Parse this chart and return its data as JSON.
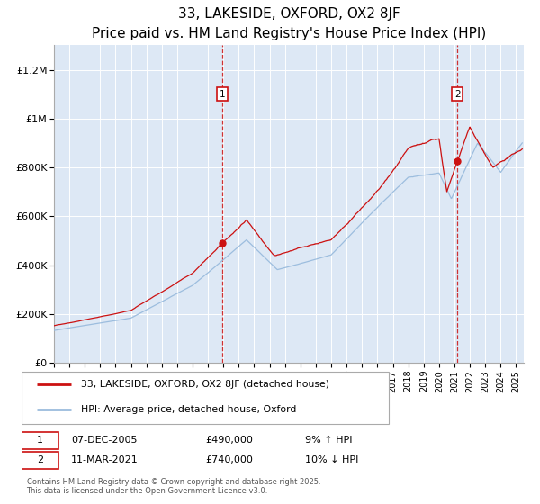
{
  "title": "33, LAKESIDE, OXFORD, OX2 8JF",
  "subtitle": "Price paid vs. HM Land Registry's House Price Index (HPI)",
  "title_fontsize": 11,
  "subtitle_fontsize": 9,
  "ylim": [
    0,
    1300000
  ],
  "yticks": [
    0,
    200000,
    400000,
    600000,
    800000,
    1000000,
    1200000
  ],
  "ytick_labels": [
    "£0",
    "£200K",
    "£400K",
    "£600K",
    "£800K",
    "£1M",
    "£1.2M"
  ],
  "plot_bg_color": "#dde8f5",
  "grid_color": "#ffffff",
  "line1_color": "#cc1111",
  "line2_color": "#99bbdd",
  "vline_color": "#cc1111",
  "event1_year": 2005.92,
  "event1_price": 490000,
  "event1_date": "07-DEC-2005",
  "event1_pct": "9% ↑ HPI",
  "event2_year": 2021.19,
  "event2_price": 740000,
  "event2_date": "11-MAR-2021",
  "event2_pct": "10% ↓ HPI",
  "legend1_label": "33, LAKESIDE, OXFORD, OX2 8JF (detached house)",
  "legend2_label": "HPI: Average price, detached house, Oxford",
  "footnote": "Contains HM Land Registry data © Crown copyright and database right 2025.\nThis data is licensed under the Open Government Licence v3.0.",
  "xmin": 1995,
  "xmax": 2025.5
}
